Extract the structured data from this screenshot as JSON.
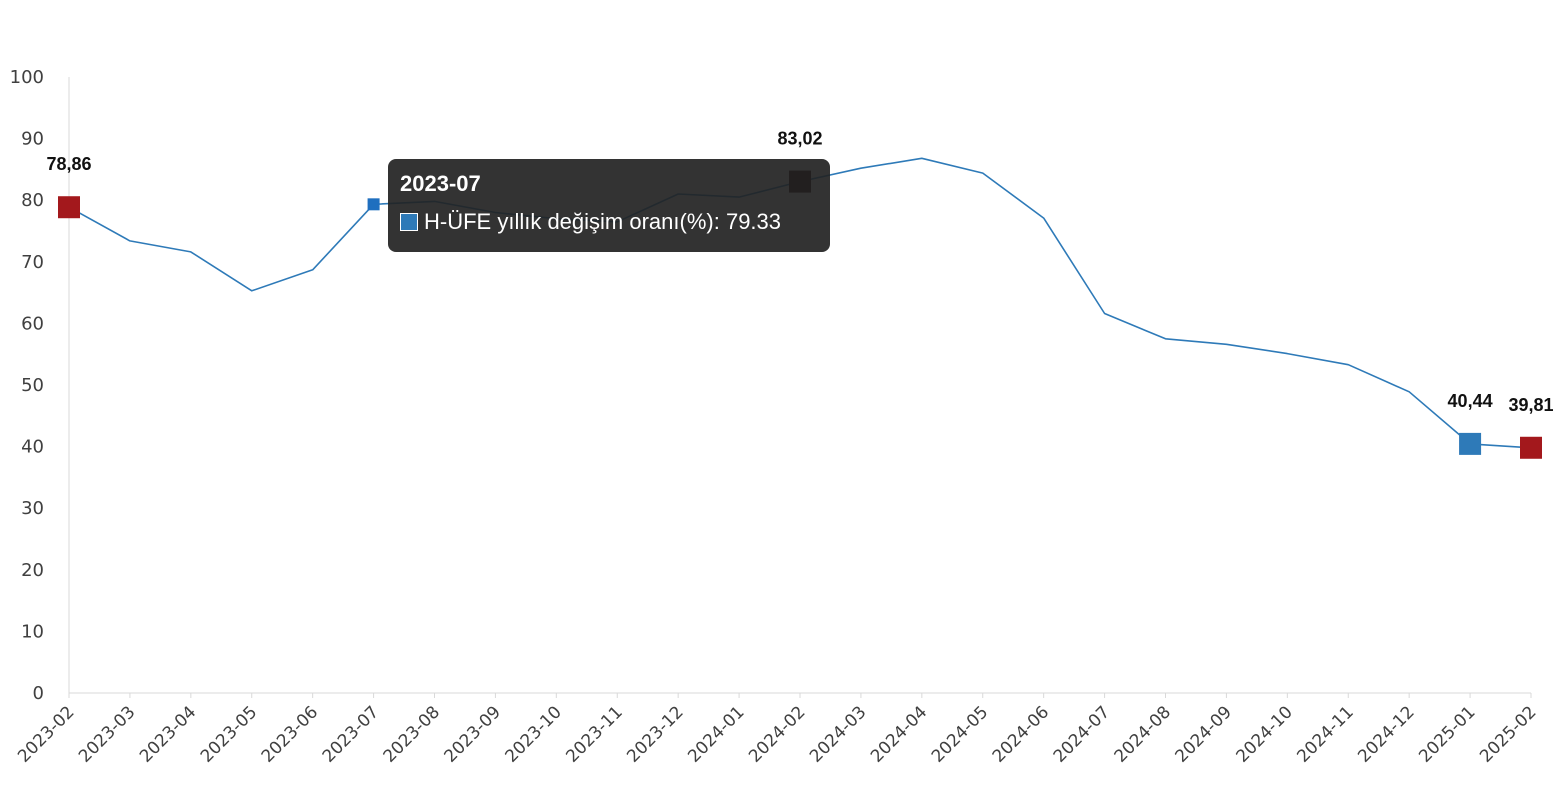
{
  "chart_data": {
    "type": "line",
    "title": "",
    "xlabel": "",
    "ylabel": "",
    "ylim": [
      0,
      100
    ],
    "yticks": [
      0,
      10,
      20,
      30,
      40,
      50,
      60,
      70,
      80,
      90,
      100
    ],
    "grid": false,
    "categories": [
      "2023-02",
      "2023-03",
      "2023-04",
      "2023-05",
      "2023-06",
      "2023-07",
      "2023-08",
      "2023-09",
      "2023-10",
      "2023-11",
      "2023-12",
      "2024-01",
      "2024-02",
      "2024-03",
      "2024-04",
      "2024-05",
      "2024-06",
      "2024-07",
      "2024-08",
      "2024-09",
      "2024-10",
      "2024-11",
      "2024-12",
      "2025-01",
      "2025-02"
    ],
    "series": [
      {
        "name": "H-ÜFE yıllık değişim oranı(%)",
        "color": "#2e7ab8",
        "values": [
          78.86,
          73.4,
          71.6,
          65.3,
          68.7,
          79.33,
          79.8,
          78.0,
          77.0,
          76.5,
          81.0,
          80.5,
          83.02,
          85.2,
          86.8,
          84.4,
          77.1,
          61.6,
          57.5,
          56.6,
          55.1,
          53.3,
          48.9,
          40.44,
          39.81
        ]
      }
    ],
    "highlights": [
      {
        "category": "2023-02",
        "value": 78.86,
        "label": "78,86",
        "color": "#a3181c"
      },
      {
        "category": "2024-02",
        "value": 83.02,
        "label": "83,02",
        "color": "#2a0004"
      },
      {
        "category": "2025-01",
        "value": 40.44,
        "label": "40,44",
        "color": "#2e7ab8"
      },
      {
        "category": "2025-02",
        "value": 39.81,
        "label": "39,81",
        "color": "#a3181c"
      }
    ],
    "hovered": {
      "category": "2023-07",
      "value": 79.33
    }
  },
  "tooltip": {
    "title": "2023-07",
    "series_name": "H-ÜFE yıllık değişim oranı(%)",
    "value_text": "79.33",
    "swatch_color": "#2e7ab8"
  }
}
